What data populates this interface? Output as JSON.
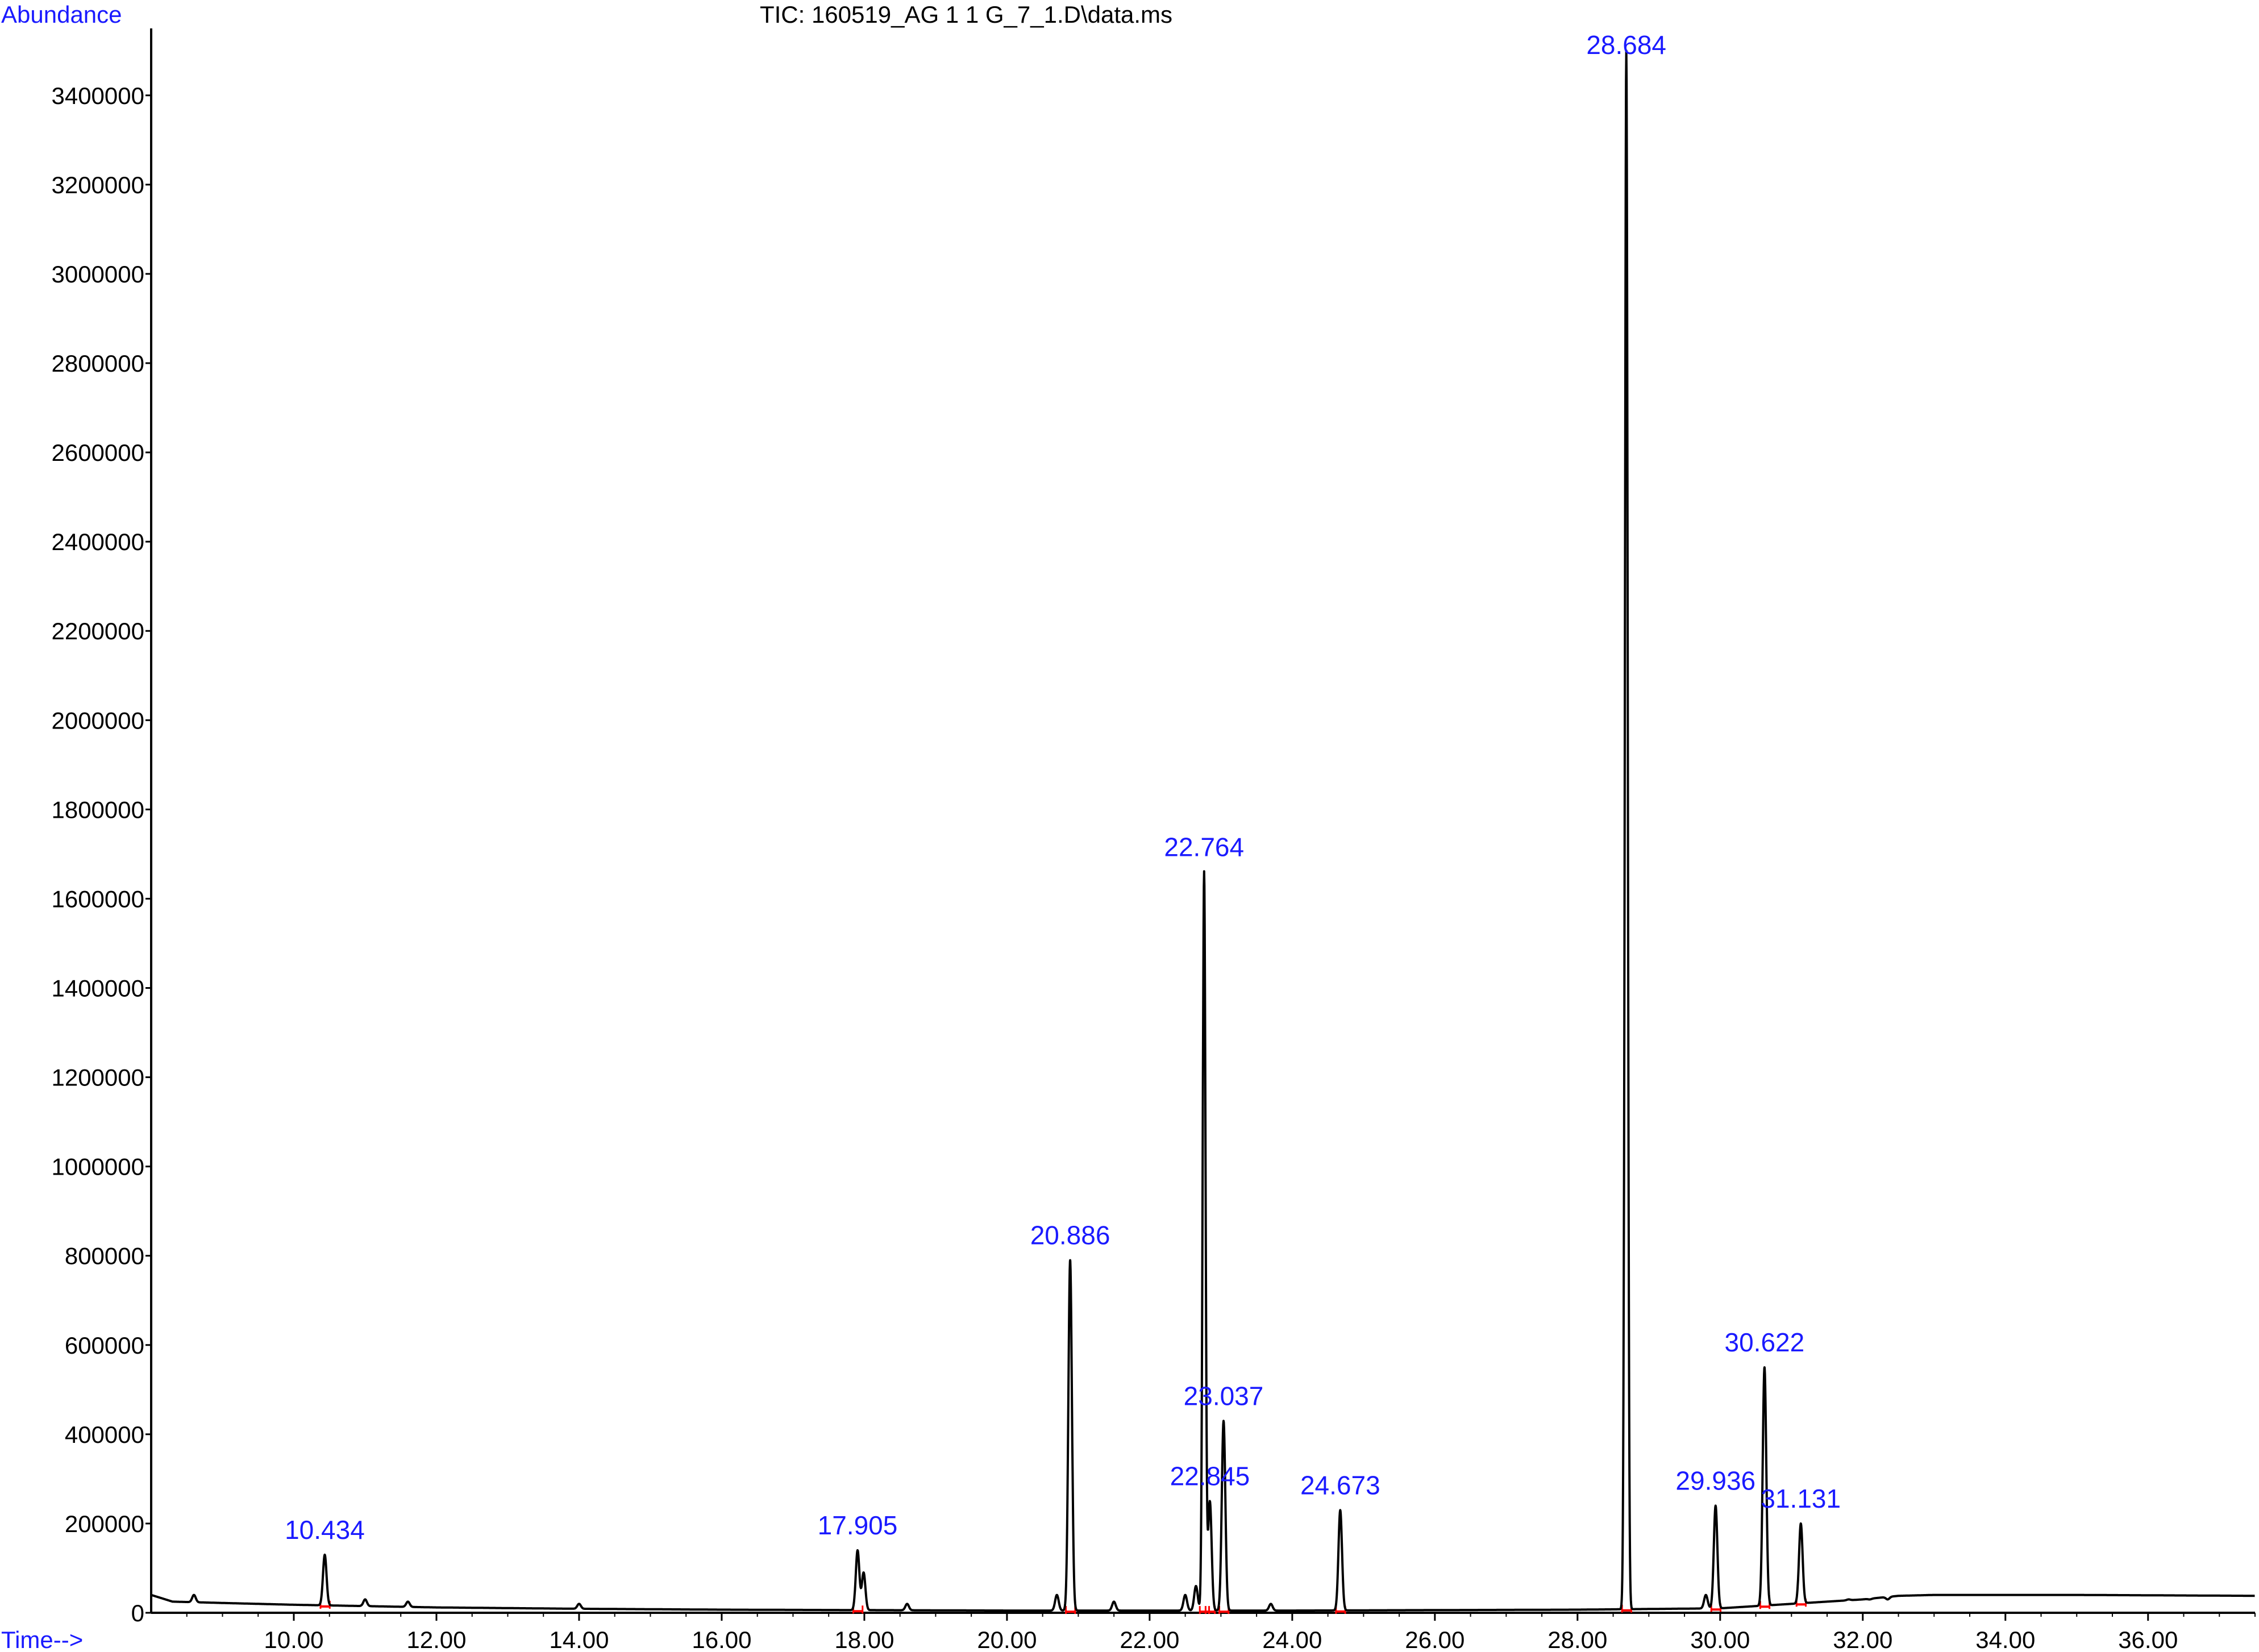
{
  "chart_data": {
    "type": "line",
    "title": "TIC: 160519_AG 1 1 G_7_1.D\\data.ms",
    "ylabel": "Abundance",
    "xlabel": "Time-->",
    "xlim": [
      8.0,
      37.5
    ],
    "ylim": [
      0,
      3550000
    ],
    "grid": false,
    "x_ticks": [
      "10.00",
      "12.00",
      "14.00",
      "16.00",
      "18.00",
      "20.00",
      "22.00",
      "24.00",
      "26.00",
      "28.00",
      "30.00",
      "32.00",
      "34.00",
      "36.00"
    ],
    "x_tick_values": [
      10,
      12,
      14,
      16,
      18,
      20,
      22,
      24,
      26,
      28,
      30,
      32,
      34,
      36
    ],
    "y_ticks": [
      "0",
      "200000",
      "400000",
      "600000",
      "800000",
      "1000000",
      "1200000",
      "1400000",
      "1600000",
      "1800000",
      "2000000",
      "2200000",
      "2400000",
      "2600000",
      "2800000",
      "3000000",
      "3200000",
      "3400000"
    ],
    "y_tick_values": [
      0,
      200000,
      400000,
      600000,
      800000,
      1000000,
      1200000,
      1400000,
      1600000,
      1800000,
      2000000,
      2200000,
      2400000,
      2600000,
      2800000,
      3000000,
      3200000,
      3400000
    ],
    "peaks": [
      {
        "label": "10.434",
        "x": 10.434,
        "y": 130000
      },
      {
        "label": "17.905",
        "x": 17.905,
        "y": 140000
      },
      {
        "label": "20.886",
        "x": 20.886,
        "y": 790000
      },
      {
        "label": "22.764",
        "x": 22.764,
        "y": 1660000
      },
      {
        "label": "22.845",
        "x": 22.845,
        "y": 250000
      },
      {
        "label": "23.037",
        "x": 23.037,
        "y": 430000
      },
      {
        "label": "24.673",
        "x": 24.673,
        "y": 230000
      },
      {
        "label": "28.684",
        "x": 28.684,
        "y": 3500000
      },
      {
        "label": "29.936",
        "x": 29.936,
        "y": 240000
      },
      {
        "label": "30.622",
        "x": 30.622,
        "y": 550000
      },
      {
        "label": "31.131",
        "x": 31.131,
        "y": 200000
      }
    ],
    "minor_peaks": [
      {
        "x": 8.6,
        "y": 40000
      },
      {
        "x": 11.0,
        "y": 30000
      },
      {
        "x": 11.6,
        "y": 25000
      },
      {
        "x": 14.0,
        "y": 20000
      },
      {
        "x": 17.99,
        "y": 90000
      },
      {
        "x": 18.6,
        "y": 20000
      },
      {
        "x": 20.7,
        "y": 40000
      },
      {
        "x": 21.5,
        "y": 25000
      },
      {
        "x": 22.5,
        "y": 40000
      },
      {
        "x": 22.65,
        "y": 60000
      },
      {
        "x": 23.7,
        "y": 20000
      },
      {
        "x": 29.8,
        "y": 40000
      },
      {
        "x": 31.8,
        "y": 30000
      },
      {
        "x": 32.1,
        "y": 30000
      },
      {
        "x": 32.35,
        "y": 30000
      }
    ],
    "baseline": [
      [
        8.0,
        40000
      ],
      [
        8.3,
        25000
      ],
      [
        9.0,
        22000
      ],
      [
        10.0,
        18000
      ],
      [
        11.0,
        15000
      ],
      [
        12.0,
        12000
      ],
      [
        14.0,
        9000
      ],
      [
        16.0,
        7000
      ],
      [
        18.0,
        6000
      ],
      [
        20.0,
        5000
      ],
      [
        22.0,
        5000
      ],
      [
        24.0,
        5000
      ],
      [
        26.0,
        6000
      ],
      [
        28.0,
        7000
      ],
      [
        30.0,
        10000
      ],
      [
        31.0,
        20000
      ],
      [
        31.5,
        25000
      ],
      [
        32.0,
        30000
      ],
      [
        32.5,
        38000
      ],
      [
        33.0,
        40000
      ],
      [
        35.0,
        40000
      ],
      [
        37.5,
        38000
      ]
    ],
    "colors": {
      "trace": "#000000",
      "labels": "#1a1aff",
      "integration_marks": "#ff0000",
      "axis": "#000000"
    }
  }
}
